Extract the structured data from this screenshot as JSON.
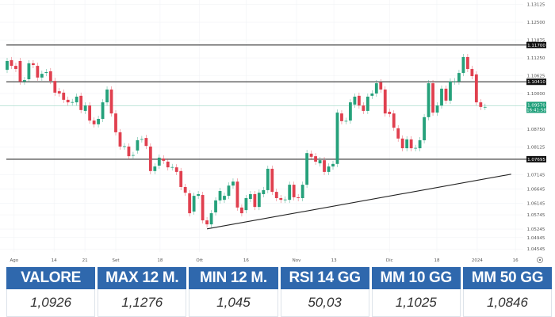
{
  "chart_data": {
    "type": "candlestick",
    "title": "",
    "colors": {
      "up": "#26a17b",
      "down": "#e0404f",
      "level_line": "#333333",
      "last_price": "#1e9f7a"
    },
    "y_range": [
      1.043,
      1.1328
    ],
    "y_ticks": [
      "1.13125",
      "1.12500",
      "1.11875",
      "1.11250",
      "1.10625",
      "1.10000",
      "1.08750",
      "1.08125",
      "1.07145",
      "1.06645",
      "1.06145",
      "1.05745",
      "1.05245",
      "1.04945",
      "1.04545"
    ],
    "levels": [
      {
        "price": 1.117,
        "label": "1.11700"
      },
      {
        "price": 1.1041,
        "label": "1.10410"
      },
      {
        "price": 1.07695,
        "label": "1.07695"
      }
    ],
    "last_price": {
      "price": 1.0957,
      "label": "1.09570",
      "time": "16:41:58"
    },
    "trendline": {
      "from": {
        "index": 46,
        "price": 1.0525
      },
      "to": {
        "index": 116,
        "price": 1.0717
      }
    },
    "x_ticks": [
      {
        "label": "Ago",
        "index": 1.6
      },
      {
        "label": "14",
        "index": 10.8
      },
      {
        "label": "21",
        "index": 17.9
      },
      {
        "label": "Set",
        "index": 25
      },
      {
        "label": "18",
        "index": 35.2
      },
      {
        "label": "Ott",
        "index": 44.3
      },
      {
        "label": "16",
        "index": 55
      },
      {
        "label": "Nov",
        "index": 66.6
      },
      {
        "label": "13",
        "index": 75.2
      },
      {
        "label": "Dic",
        "index": 88
      },
      {
        "label": "18",
        "index": 98.9
      },
      {
        "label": "2024",
        "index": 108.2
      },
      {
        "label": "16",
        "index": 117
      }
    ],
    "candles_open_close": [
      [
        1.1083,
        1.1114
      ],
      [
        1.1117,
        1.1097
      ],
      [
        1.1097,
        1.1086
      ],
      [
        1.1114,
        1.1042
      ],
      [
        1.1042,
        1.1047
      ],
      [
        1.105,
        1.1106
      ],
      [
        1.1106,
        1.11
      ],
      [
        1.1097,
        1.1056
      ],
      [
        1.1056,
        1.1069
      ],
      [
        1.1072,
        1.1075
      ],
      [
        1.1078,
        1.1044
      ],
      [
        1.1044,
        1.1003
      ],
      [
        1.1008,
        1.1
      ],
      [
        1.1003,
        1.0978
      ],
      [
        1.0978,
        1.0969
      ],
      [
        1.0969,
        1.097
      ],
      [
        1.0969,
        1.0989
      ],
      [
        1.0992,
        1.0942
      ],
      [
        1.0939,
        1.0958
      ],
      [
        1.0958,
        1.0905
      ],
      [
        1.0905,
        1.0892
      ],
      [
        1.0892,
        1.0911
      ],
      [
        1.0911,
        1.0969
      ],
      [
        1.0969,
        1.1014
      ],
      [
        1.1014,
        1.093
      ],
      [
        1.093,
        1.0864
      ],
      [
        1.0864,
        1.0814
      ],
      [
        1.0814,
        1.0815
      ],
      [
        1.0814,
        1.078
      ],
      [
        1.0783,
        1.0784
      ],
      [
        1.08,
        1.0836
      ],
      [
        1.0839,
        1.084
      ],
      [
        1.0844,
        1.0816
      ],
      [
        1.0814,
        1.0728
      ],
      [
        1.0728,
        1.0744
      ],
      [
        1.0747,
        1.0775
      ],
      [
        1.0772,
        1.0764
      ],
      [
        1.0761,
        1.0741
      ],
      [
        1.0741,
        1.0742
      ],
      [
        1.0741,
        1.0725
      ],
      [
        1.0728,
        1.0672
      ],
      [
        1.0672,
        1.0652
      ],
      [
        1.065,
        1.058
      ],
      [
        1.0586,
        1.0641
      ],
      [
        1.0641,
        1.0647
      ],
      [
        1.0644,
        1.0555
      ],
      [
        1.0555,
        1.0541
      ],
      [
        1.0541,
        1.058
      ],
      [
        1.0583,
        1.0625
      ],
      [
        1.0625,
        1.0658
      ],
      [
        1.0627,
        1.0641
      ],
      [
        1.0641,
        1.0677
      ],
      [
        1.0677,
        1.0691
      ],
      [
        1.0691,
        1.06
      ],
      [
        1.06,
        1.058
      ],
      [
        1.0591,
        1.0633
      ],
      [
        1.063,
        1.0647
      ],
      [
        1.0647,
        1.0602
      ],
      [
        1.0602,
        1.0652
      ],
      [
        1.0647,
        1.0661
      ],
      [
        1.0661,
        1.0736
      ],
      [
        1.0736,
        1.0655
      ],
      [
        1.0655,
        1.0633
      ],
      [
        1.0633,
        1.0627
      ],
      [
        1.0627,
        1.0628
      ],
      [
        1.0627,
        1.068
      ],
      [
        1.068,
        1.0636
      ],
      [
        1.0636,
        1.0633
      ],
      [
        1.0633,
        1.068
      ],
      [
        1.068,
        1.0791
      ],
      [
        1.0789,
        1.0778
      ],
      [
        1.078,
        1.0761
      ],
      [
        1.0755,
        1.0766
      ],
      [
        1.0766,
        1.0725
      ],
      [
        1.0725,
        1.0744
      ],
      [
        1.0744,
        1.0753
      ],
      [
        1.0753,
        1.0933
      ],
      [
        1.093,
        1.0903
      ],
      [
        1.0903,
        1.0904
      ],
      [
        1.0905,
        1.0969
      ],
      [
        1.0961,
        1.0989
      ],
      [
        1.0992,
        1.0958
      ],
      [
        1.0958,
        1.0939
      ],
      [
        1.0939,
        1.0989
      ],
      [
        1.0992,
        1.1
      ],
      [
        1.1,
        1.1036
      ],
      [
        1.1039,
        1.1014
      ],
      [
        1.1014,
        1.093
      ],
      [
        1.0936,
        1.0928
      ],
      [
        1.093,
        1.088
      ],
      [
        1.0878,
        1.0842
      ],
      [
        1.0842,
        1.0808
      ],
      [
        1.0808,
        1.0839
      ],
      [
        1.0839,
        1.0808
      ],
      [
        1.0808,
        1.0809
      ],
      [
        1.0808,
        1.0836
      ],
      [
        1.0836,
        1.0917
      ],
      [
        1.0917,
        1.1036
      ],
      [
        1.1036,
        1.0933
      ],
      [
        1.0933,
        1.0958
      ],
      [
        1.0958,
        1.1017
      ],
      [
        1.1017,
        1.0975
      ],
      [
        1.0975,
        1.1042
      ],
      [
        1.1042,
        1.1043
      ],
      [
        1.1042,
        1.1072
      ],
      [
        1.1072,
        1.1128
      ],
      [
        1.1128,
        1.1086
      ],
      [
        1.1086,
        1.1061
      ],
      [
        1.1067,
        1.0969
      ],
      [
        1.0969,
        1.0953
      ],
      [
        1.0953,
        1.0953
      ]
    ]
  },
  "settings_icon": "gear-icon",
  "stats": [
    {
      "label": "VALORE",
      "value": "1,0926"
    },
    {
      "label": "MAX 12 M.",
      "value": "1,1276"
    },
    {
      "label": "MIN 12 M.",
      "value": "1,045"
    },
    {
      "label": "RSI 14 GG",
      "value": "50,03"
    },
    {
      "label": "MM 10 GG",
      "value": "1,1025"
    },
    {
      "label": "MM 50 GG",
      "value": "1,0846"
    }
  ]
}
